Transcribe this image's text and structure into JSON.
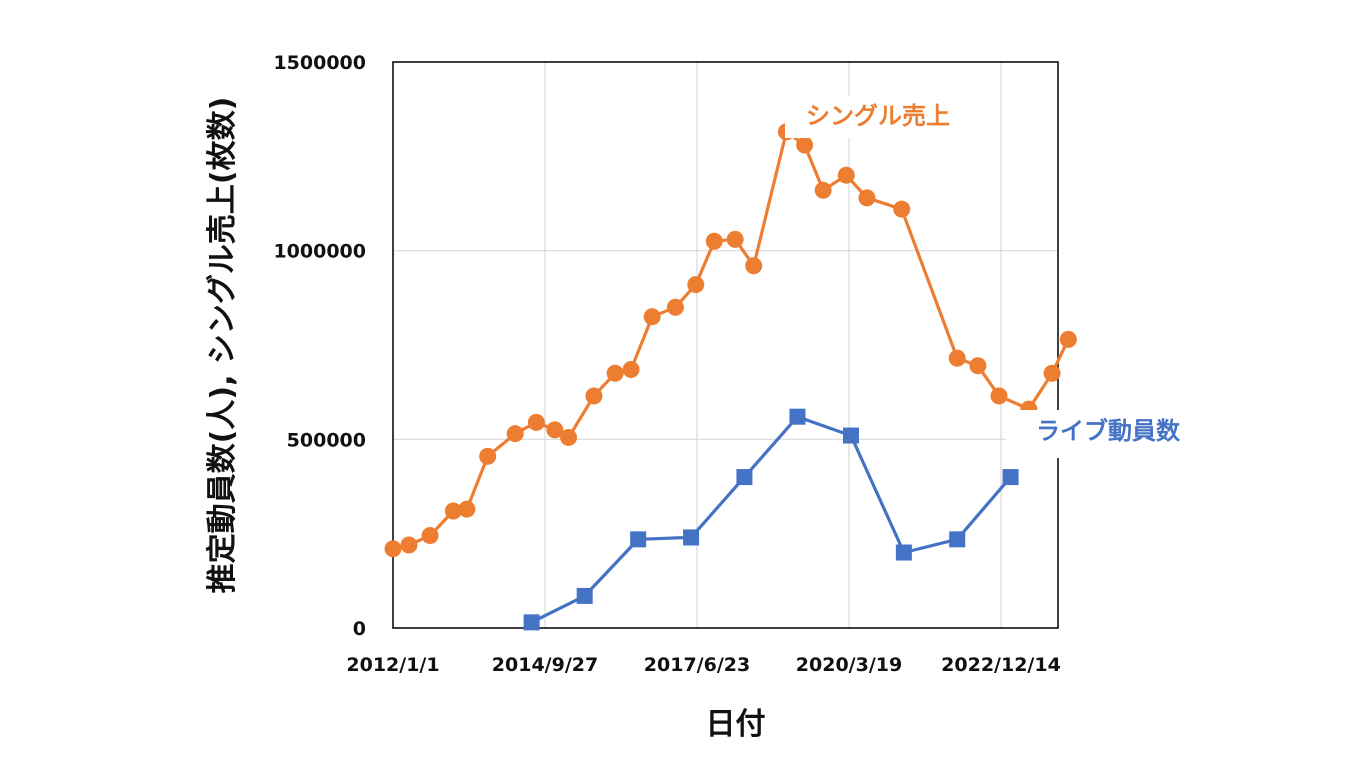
{
  "chart_data": {
    "type": "line",
    "xlabel": "日付",
    "ylabel": "推定動員数(人), シングル売上(枚数)",
    "ylim": [
      0,
      1500000
    ],
    "yticks": [
      "0",
      "500000",
      "1000000",
      "1500000"
    ],
    "xticks": [
      "2012/1/1",
      "2014/9/27",
      "2017/6/23",
      "2020/3/19",
      "2022/12/14"
    ],
    "xlim": [
      "2012/1/1",
      "2023/12/1"
    ],
    "grid": true,
    "colors": {
      "single": "#ED7D31",
      "live": "#4472C4",
      "grid": "#d9d9d9",
      "axis": "#000000"
    },
    "series": [
      {
        "name": "シングル売上",
        "marker": "circle",
        "points": [
          {
            "x": "2012/1/1",
            "y": 210000
          },
          {
            "x": "2012/4/15",
            "y": 220000
          },
          {
            "x": "2012/9/1",
            "y": 245000
          },
          {
            "x": "2013/2/1",
            "y": 310000
          },
          {
            "x": "2013/5/1",
            "y": 315000
          },
          {
            "x": "2013/9/15",
            "y": 455000
          },
          {
            "x": "2014/3/15",
            "y": 515000
          },
          {
            "x": "2014/8/1",
            "y": 545000
          },
          {
            "x": "2014/12/1",
            "y": 525000
          },
          {
            "x": "2015/3/1",
            "y": 505000
          },
          {
            "x": "2015/8/15",
            "y": 615000
          },
          {
            "x": "2016/1/1",
            "y": 675000
          },
          {
            "x": "2016/4/15",
            "y": 685000
          },
          {
            "x": "2016/9/1",
            "y": 825000
          },
          {
            "x": "2017/2/1",
            "y": 850000
          },
          {
            "x": "2017/6/15",
            "y": 910000
          },
          {
            "x": "2017/10/15",
            "y": 1025000
          },
          {
            "x": "2018/3/1",
            "y": 1030000
          },
          {
            "x": "2018/7/1",
            "y": 960000
          },
          {
            "x": "2019/2/1",
            "y": 1315000
          },
          {
            "x": "2019/6/1",
            "y": 1280000
          },
          {
            "x": "2019/10/1",
            "y": 1160000
          },
          {
            "x": "2020/3/1",
            "y": 1200000
          },
          {
            "x": "2020/7/15",
            "y": 1140000
          },
          {
            "x": "2021/3/1",
            "y": 1110000
          },
          {
            "x": "2022/3/1",
            "y": 715000
          },
          {
            "x": "2022/7/15",
            "y": 695000
          },
          {
            "x": "2022/12/1",
            "y": 615000
          },
          {
            "x": "2023/6/15",
            "y": 580000
          },
          {
            "x": "2023/11/15",
            "y": 675000
          },
          {
            "x": "2024/3/1",
            "y": 765000
          }
        ]
      },
      {
        "name": "ライブ動員数",
        "marker": "square",
        "points": [
          {
            "x": "2014/7/1",
            "y": 15000
          },
          {
            "x": "2015/6/15",
            "y": 85000
          },
          {
            "x": "2016/6/1",
            "y": 235000
          },
          {
            "x": "2017/5/15",
            "y": 240000
          },
          {
            "x": "2018/5/1",
            "y": 400000
          },
          {
            "x": "2019/4/15",
            "y": 560000
          },
          {
            "x": "2020/4/1",
            "y": 510000
          },
          {
            "x": "2021/3/15",
            "y": 200000
          },
          {
            "x": "2022/3/1",
            "y": 235000
          },
          {
            "x": "2023/2/15",
            "y": 400000
          }
        ]
      }
    ]
  }
}
